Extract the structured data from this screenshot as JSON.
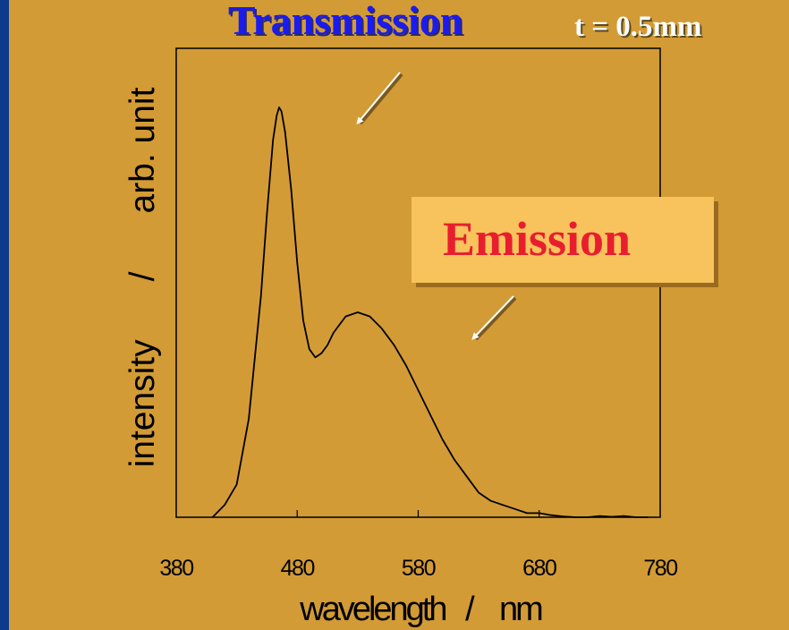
{
  "header": {
    "title": "Transmission",
    "thickness": "t  = 0.5mm"
  },
  "callout": {
    "label": "Emission"
  },
  "colors": {
    "slide_border": "#0d3a8c",
    "slide_background": "#d29b36",
    "title": "#1b1bf0",
    "callout_fill": "#f8c25c",
    "callout_text": "#e81e2e",
    "curve": "#000000",
    "arrow": "#ffffff"
  },
  "chart_data": {
    "type": "line",
    "xlabel": "wavelength   /    nm",
    "ylabel": "intensity      /      arb. unit",
    "xlim": [
      380,
      780
    ],
    "ylim": [
      0,
      100
    ],
    "x_ticks": [
      380,
      480,
      580,
      680,
      780
    ],
    "grid": false,
    "series": [
      {
        "x": [
          410,
          420,
          430,
          440,
          450,
          455,
          460,
          463,
          465,
          467,
          470,
          475,
          480,
          485,
          490,
          495,
          500,
          505,
          510,
          520,
          530,
          540,
          550,
          560,
          570,
          580,
          590,
          600,
          610,
          620,
          630,
          640,
          650,
          660,
          670,
          680,
          690,
          700,
          710,
          720,
          730,
          740,
          750,
          760,
          770
        ],
        "y": [
          0,
          3,
          8,
          24,
          54,
          74,
          92,
          98,
          100,
          99,
          94,
          80,
          62,
          48,
          41,
          39,
          40,
          42,
          45,
          49,
          50,
          49,
          46,
          42,
          37,
          31,
          25,
          19,
          14,
          10,
          6,
          4,
          3,
          2,
          1,
          1,
          0.5,
          0.2,
          0,
          0,
          0.3,
          0.1,
          0.3,
          0,
          0
        ]
      }
    ]
  }
}
